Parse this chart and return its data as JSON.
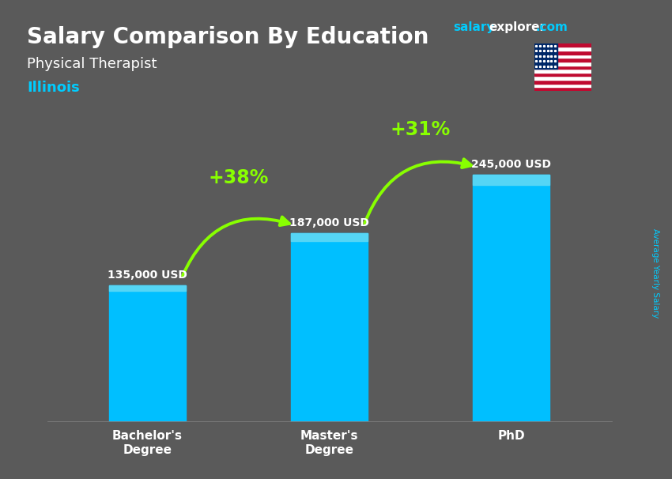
{
  "title": "Salary Comparison By Education",
  "subtitle": "Physical Therapist",
  "location": "Illinois",
  "categories": [
    "Bachelor's\nDegree",
    "Master's\nDegree",
    "PhD"
  ],
  "values": [
    135000,
    187000,
    245000
  ],
  "value_labels": [
    "135,000 USD",
    "187,000 USD",
    "245,000 USD"
  ],
  "bar_color_main": "#00BFFF",
  "bar_color_side": "#0090CC",
  "bar_color_top": "#55D5F5",
  "pct_labels": [
    "+38%",
    "+31%"
  ],
  "bg_color": "#5a5a5a",
  "title_color": "#ffffff",
  "subtitle_color": "#ffffff",
  "location_color": "#00CCFF",
  "bar_label_color": "#ffffff",
  "pct_color": "#88FF00",
  "arrow_color": "#88FF00",
  "ylabel": "Average Yearly Salary",
  "ylabel_color": "#00CCFF",
  "website_color_salary": "#00CCFF",
  "website_color_explorer": "#ffffff",
  "website_color_com": "#00CCFF",
  "ylim": [
    0,
    295000
  ],
  "flag_red": "#BF0A30",
  "flag_blue": "#002868"
}
